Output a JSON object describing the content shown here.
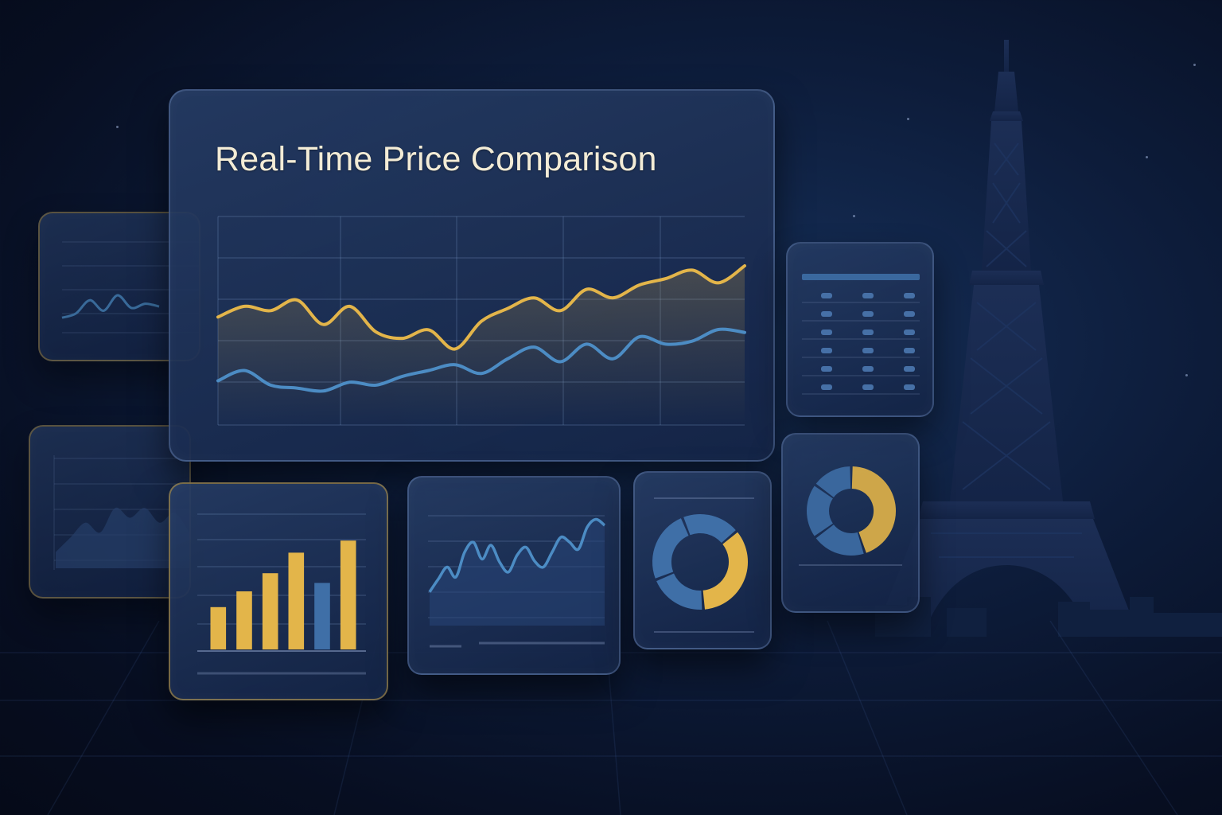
{
  "header": {
    "title": "Real-Time Price Comparison"
  },
  "colors": {
    "accent_gold": "#e3b54a",
    "accent_blue": "#4c8cc4",
    "background": "#0b1730"
  },
  "icons": [
    "eiffel-tower-icon"
  ],
  "chart_data": [
    {
      "type": "line",
      "title": "Real-Time Price Comparison",
      "grid": true,
      "x": [
        0,
        1,
        2,
        3,
        4,
        5,
        6,
        7,
        8,
        9,
        10,
        11,
        12,
        13,
        14,
        15,
        16,
        17,
        18,
        19,
        20
      ],
      "series": [
        {
          "values": [
            52,
            62,
            58,
            68,
            45,
            62,
            38,
            32,
            40,
            22,
            48,
            60,
            70,
            58,
            78,
            70,
            82,
            88,
            96,
            84,
            100
          ]
        },
        {
          "values": [
            15,
            22,
            12,
            10,
            8,
            14,
            12,
            18,
            22,
            26,
            20,
            30,
            38,
            28,
            40,
            30,
            45,
            40,
            42,
            50,
            48
          ]
        }
      ]
    },
    {
      "type": "line",
      "grid": true,
      "x": [
        0,
        1,
        2,
        3,
        4,
        5,
        6,
        7
      ],
      "series": [
        {
          "values": [
            30,
            36,
            55,
            40,
            62,
            44,
            50,
            46
          ]
        }
      ]
    },
    {
      "type": "area",
      "grid": true,
      "x": [
        0,
        1,
        2,
        3,
        4,
        5,
        6,
        7,
        8,
        9
      ],
      "series": [
        {
          "values": [
            10,
            25,
            40,
            30,
            55,
            45,
            55,
            40,
            50,
            30
          ]
        }
      ]
    },
    {
      "type": "bar",
      "grid": true,
      "categories": [
        "1",
        "2",
        "3",
        "4",
        "5",
        "6"
      ],
      "values": [
        35,
        48,
        63,
        80,
        55,
        90
      ],
      "colors": [
        "#e3b54a",
        "#e3b54a",
        "#e3b54a",
        "#e3b54a",
        "#3f6fa7",
        "#e3b54a"
      ]
    },
    {
      "type": "line",
      "grid": true,
      "x": [
        0,
        1,
        2,
        3,
        4,
        5,
        6,
        7,
        8,
        9,
        10,
        11,
        12,
        13,
        14,
        15,
        16,
        17,
        18,
        19,
        20
      ],
      "series": [
        {
          "values": [
            5,
            18,
            30,
            20,
            45,
            55,
            38,
            52,
            35,
            25,
            42,
            50,
            36,
            30,
            45,
            60,
            55,
            48,
            70,
            78,
            72
          ]
        }
      ]
    },
    {
      "type": "pie",
      "slices": [
        {
          "value": 35,
          "color": "#e3b54a"
        },
        {
          "value": 20,
          "color": "#3f6fa7"
        },
        {
          "value": 25,
          "color": "#3f6fa7"
        },
        {
          "value": 20,
          "color": "#3f6fa7"
        }
      ]
    },
    {
      "type": "pie",
      "slices": [
        {
          "value": 45,
          "color": "#e3b54a"
        },
        {
          "value": 20,
          "color": "#3f6fa7"
        },
        {
          "value": 20,
          "color": "#3f6fa7"
        },
        {
          "value": 15,
          "color": "#3f6fa7"
        }
      ]
    },
    {
      "type": "table",
      "rows": 6,
      "columns": 3
    }
  ]
}
